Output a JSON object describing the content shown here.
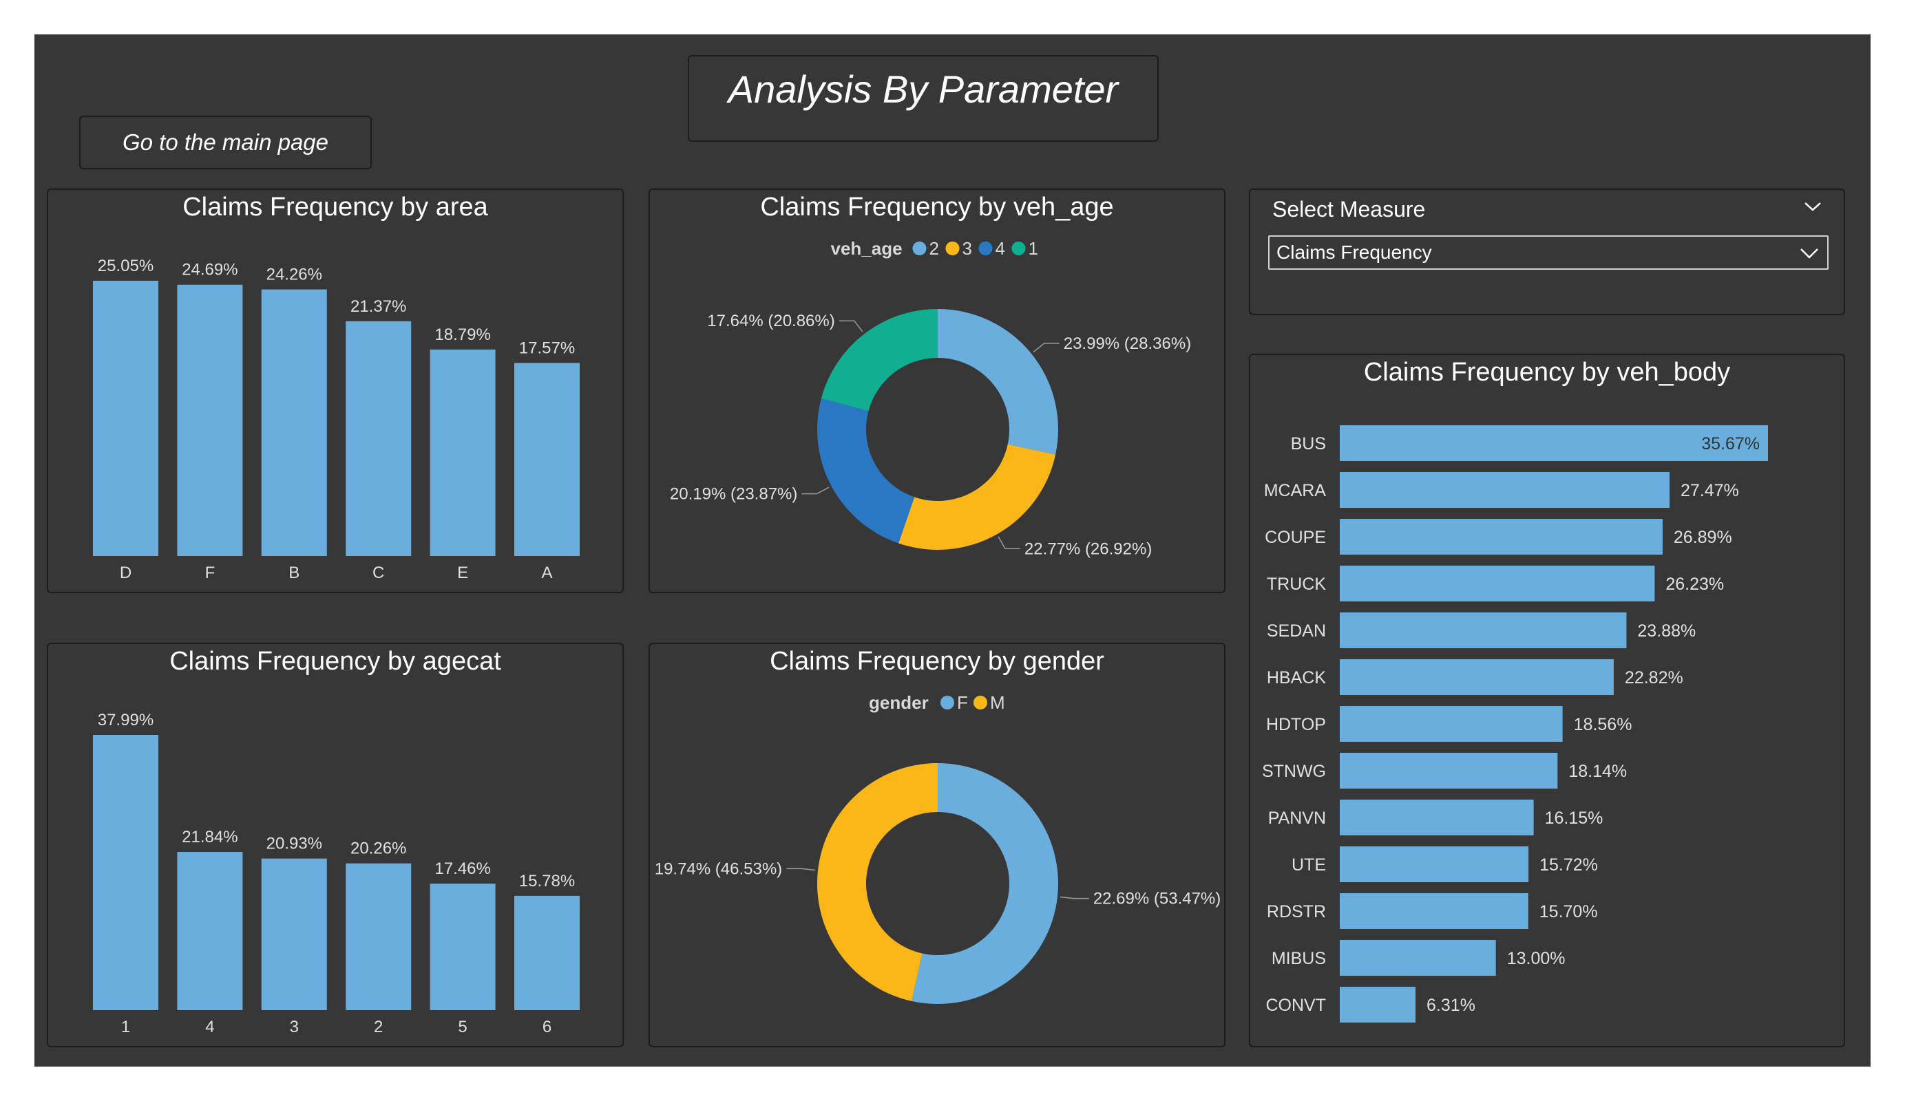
{
  "header": {
    "title": "Analysis By Parameter"
  },
  "nav": {
    "main_page_label": "Go to the main page"
  },
  "measure": {
    "label": "Select Measure",
    "selected": "Claims Frequency"
  },
  "colors": {
    "bar": "#6aaede",
    "series_2": "#6aaede",
    "series_3": "#fbb717",
    "series_4": "#2a78c4",
    "series_1": "#10af92",
    "text": "#ffffff",
    "label": "#e0e0e0",
    "background": "#373737"
  },
  "chart_data": [
    {
      "type": "bar",
      "title": "Claims Frequency by area",
      "categories": [
        "D",
        "F",
        "B",
        "C",
        "E",
        "A"
      ],
      "values": [
        25.05,
        24.69,
        24.26,
        21.37,
        18.79,
        17.57
      ],
      "labels": [
        "25.05%",
        "24.69%",
        "24.26%",
        "21.37%",
        "18.79%",
        "17.57%"
      ],
      "ylim": [
        0,
        25.05
      ],
      "grid": false
    },
    {
      "type": "pie",
      "title": "Claims Frequency by veh_age",
      "legend_title": "veh_age",
      "legend_position": "top",
      "categories": [
        "2",
        "3",
        "4",
        "1"
      ],
      "values": [
        23.99,
        22.77,
        20.19,
        17.64
      ],
      "shares": [
        28.36,
        26.92,
        23.87,
        20.86
      ],
      "labels": [
        "23.99% (28.36%)",
        "22.77% (26.92%)",
        "20.19% (23.87%)",
        "17.64% (20.86%)"
      ],
      "colors": [
        "#6aaede",
        "#fbb717",
        "#2a78c4",
        "#10af92"
      ]
    },
    {
      "type": "bar",
      "title": "Claims Frequency by agecat",
      "categories": [
        "1",
        "4",
        "3",
        "2",
        "5",
        "6"
      ],
      "values": [
        37.99,
        21.84,
        20.93,
        20.26,
        17.46,
        15.78
      ],
      "labels": [
        "37.99%",
        "21.84%",
        "20.93%",
        "20.26%",
        "17.46%",
        "15.78%"
      ],
      "ylim": [
        0,
        37.99
      ],
      "grid": false
    },
    {
      "type": "pie",
      "title": "Claims Frequency by gender",
      "legend_title": "gender",
      "legend_position": "top",
      "categories": [
        "F",
        "M"
      ],
      "values": [
        22.69,
        19.74
      ],
      "shares": [
        53.47,
        46.53
      ],
      "labels": [
        "22.69% (53.47%)",
        "19.74% (46.53%)"
      ],
      "colors": [
        "#6aaede",
        "#fbb717"
      ]
    },
    {
      "type": "bar",
      "orientation": "horizontal",
      "title": "Claims Frequency by veh_body",
      "categories": [
        "BUS",
        "MCARA",
        "COUPE",
        "TRUCK",
        "SEDAN",
        "HBACK",
        "HDTOP",
        "STNWG",
        "PANVN",
        "UTE",
        "RDSTR",
        "MIBUS",
        "CONVT"
      ],
      "values": [
        35.67,
        27.47,
        26.89,
        26.23,
        23.88,
        22.82,
        18.56,
        18.14,
        16.15,
        15.72,
        15.7,
        13.0,
        6.31
      ],
      "labels": [
        "35.67%",
        "27.47%",
        "26.89%",
        "26.23%",
        "23.88%",
        "22.82%",
        "18.56%",
        "18.14%",
        "16.15%",
        "15.72%",
        "15.70%",
        "13.00%",
        "6.31%"
      ],
      "xlim": [
        0,
        35.67
      ],
      "grid": false
    }
  ]
}
